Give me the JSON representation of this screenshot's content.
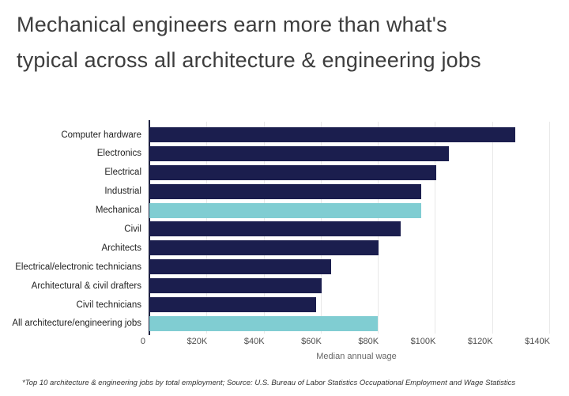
{
  "page": {
    "title_line1": "Mechanical engineers earn more than what's",
    "title_line2": "typical across all architecture & engineering jobs",
    "footnote": "*Top 10 architecture & engineering jobs by total employment; Source: U.S. Bureau of Labor Statistics Occupational Employment and Wage Statistics"
  },
  "chart_data": {
    "type": "bar",
    "orientation": "horizontal",
    "title": "Mechanical engineers earn more than what's typical across all architecture & engineering jobs",
    "xlabel": "Median annual wage",
    "ylabel": "",
    "categories": [
      "Computer hardware",
      "Electronics",
      "Electrical",
      "Industrial",
      "Mechanical",
      "Civil",
      "Architects",
      "Electrical/electronic technicians",
      "Architectural & civil drafters",
      "Civil technicians",
      "All architecture/engineering jobs"
    ],
    "values": [
      128170,
      104820,
      100420,
      95300,
      95300,
      88050,
      80180,
      63640,
      60340,
      58320,
      79840
    ],
    "highlight_indices": [
      4,
      10
    ],
    "highlighted_categories": [
      "Mechanical",
      "All architecture/engineering jobs"
    ],
    "xlim": [
      0,
      145000
    ],
    "ticks": [
      {
        "value": 0,
        "label": "0"
      },
      {
        "value": 20000,
        "label": "$20K"
      },
      {
        "value": 40000,
        "label": "$40K"
      },
      {
        "value": 60000,
        "label": "$60K"
      },
      {
        "value": 80000,
        "label": "$80K"
      },
      {
        "value": 100000,
        "label": "$100K"
      },
      {
        "value": 120000,
        "label": "$120K"
      },
      {
        "value": 140000,
        "label": "$140K"
      }
    ],
    "grid": "vertical-only",
    "legend": "none",
    "colors": {
      "bar": "#1b1e4e",
      "highlight": "#80cdd2",
      "gridline": "#e8e8e8",
      "axis_line": "#1f2240",
      "tick_text": "#4d4d4d",
      "category_text": "#222222",
      "title_text": "#3d3d3d"
    }
  }
}
